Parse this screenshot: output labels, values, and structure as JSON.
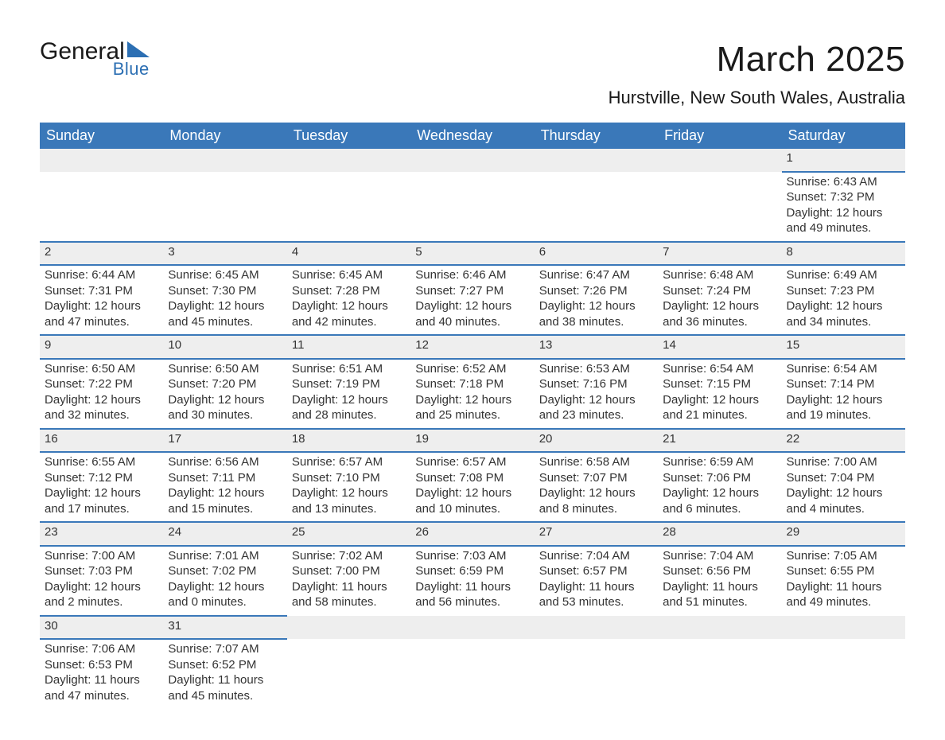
{
  "logo": {
    "word1": "General",
    "word2": "Blue"
  },
  "title": "March 2025",
  "location": "Hurstville, New South Wales, Australia",
  "weekday_labels": [
    "Sunday",
    "Monday",
    "Tuesday",
    "Wednesday",
    "Thursday",
    "Friday",
    "Saturday"
  ],
  "colors": {
    "header_bg": "#3a78b9",
    "header_fg": "#ffffff",
    "daynum_bg": "#eeeeee",
    "daynum_fg": "#555555",
    "body_text": "#333333",
    "rule": "#3a78b9",
    "logo_accent": "#2c6fb3",
    "page_bg": "#ffffff"
  },
  "typography": {
    "title_fontsize_pt": 33,
    "location_fontsize_pt": 17,
    "weekday_fontsize_pt": 14,
    "daynum_fontsize_pt": 13,
    "body_fontsize_pt": 11,
    "font_family": "Arial"
  },
  "calendar": {
    "type": "table",
    "columns": 7,
    "leading_blanks": 6,
    "days": [
      {
        "n": 1,
        "sunrise": "6:43 AM",
        "sunset": "7:32 PM",
        "daylight": "12 hours and 49 minutes."
      },
      {
        "n": 2,
        "sunrise": "6:44 AM",
        "sunset": "7:31 PM",
        "daylight": "12 hours and 47 minutes."
      },
      {
        "n": 3,
        "sunrise": "6:45 AM",
        "sunset": "7:30 PM",
        "daylight": "12 hours and 45 minutes."
      },
      {
        "n": 4,
        "sunrise": "6:45 AM",
        "sunset": "7:28 PM",
        "daylight": "12 hours and 42 minutes."
      },
      {
        "n": 5,
        "sunrise": "6:46 AM",
        "sunset": "7:27 PM",
        "daylight": "12 hours and 40 minutes."
      },
      {
        "n": 6,
        "sunrise": "6:47 AM",
        "sunset": "7:26 PM",
        "daylight": "12 hours and 38 minutes."
      },
      {
        "n": 7,
        "sunrise": "6:48 AM",
        "sunset": "7:24 PM",
        "daylight": "12 hours and 36 minutes."
      },
      {
        "n": 8,
        "sunrise": "6:49 AM",
        "sunset": "7:23 PM",
        "daylight": "12 hours and 34 minutes."
      },
      {
        "n": 9,
        "sunrise": "6:50 AM",
        "sunset": "7:22 PM",
        "daylight": "12 hours and 32 minutes."
      },
      {
        "n": 10,
        "sunrise": "6:50 AM",
        "sunset": "7:20 PM",
        "daylight": "12 hours and 30 minutes."
      },
      {
        "n": 11,
        "sunrise": "6:51 AM",
        "sunset": "7:19 PM",
        "daylight": "12 hours and 28 minutes."
      },
      {
        "n": 12,
        "sunrise": "6:52 AM",
        "sunset": "7:18 PM",
        "daylight": "12 hours and 25 minutes."
      },
      {
        "n": 13,
        "sunrise": "6:53 AM",
        "sunset": "7:16 PM",
        "daylight": "12 hours and 23 minutes."
      },
      {
        "n": 14,
        "sunrise": "6:54 AM",
        "sunset": "7:15 PM",
        "daylight": "12 hours and 21 minutes."
      },
      {
        "n": 15,
        "sunrise": "6:54 AM",
        "sunset": "7:14 PM",
        "daylight": "12 hours and 19 minutes."
      },
      {
        "n": 16,
        "sunrise": "6:55 AM",
        "sunset": "7:12 PM",
        "daylight": "12 hours and 17 minutes."
      },
      {
        "n": 17,
        "sunrise": "6:56 AM",
        "sunset": "7:11 PM",
        "daylight": "12 hours and 15 minutes."
      },
      {
        "n": 18,
        "sunrise": "6:57 AM",
        "sunset": "7:10 PM",
        "daylight": "12 hours and 13 minutes."
      },
      {
        "n": 19,
        "sunrise": "6:57 AM",
        "sunset": "7:08 PM",
        "daylight": "12 hours and 10 minutes."
      },
      {
        "n": 20,
        "sunrise": "6:58 AM",
        "sunset": "7:07 PM",
        "daylight": "12 hours and 8 minutes."
      },
      {
        "n": 21,
        "sunrise": "6:59 AM",
        "sunset": "7:06 PM",
        "daylight": "12 hours and 6 minutes."
      },
      {
        "n": 22,
        "sunrise": "7:00 AM",
        "sunset": "7:04 PM",
        "daylight": "12 hours and 4 minutes."
      },
      {
        "n": 23,
        "sunrise": "7:00 AM",
        "sunset": "7:03 PM",
        "daylight": "12 hours and 2 minutes."
      },
      {
        "n": 24,
        "sunrise": "7:01 AM",
        "sunset": "7:02 PM",
        "daylight": "12 hours and 0 minutes."
      },
      {
        "n": 25,
        "sunrise": "7:02 AM",
        "sunset": "7:00 PM",
        "daylight": "11 hours and 58 minutes."
      },
      {
        "n": 26,
        "sunrise": "7:03 AM",
        "sunset": "6:59 PM",
        "daylight": "11 hours and 56 minutes."
      },
      {
        "n": 27,
        "sunrise": "7:04 AM",
        "sunset": "6:57 PM",
        "daylight": "11 hours and 53 minutes."
      },
      {
        "n": 28,
        "sunrise": "7:04 AM",
        "sunset": "6:56 PM",
        "daylight": "11 hours and 51 minutes."
      },
      {
        "n": 29,
        "sunrise": "7:05 AM",
        "sunset": "6:55 PM",
        "daylight": "11 hours and 49 minutes."
      },
      {
        "n": 30,
        "sunrise": "7:06 AM",
        "sunset": "6:53 PM",
        "daylight": "11 hours and 47 minutes."
      },
      {
        "n": 31,
        "sunrise": "7:07 AM",
        "sunset": "6:52 PM",
        "daylight": "11 hours and 45 minutes."
      }
    ],
    "field_labels": {
      "sunrise": "Sunrise:",
      "sunset": "Sunset:",
      "daylight": "Daylight:"
    }
  }
}
